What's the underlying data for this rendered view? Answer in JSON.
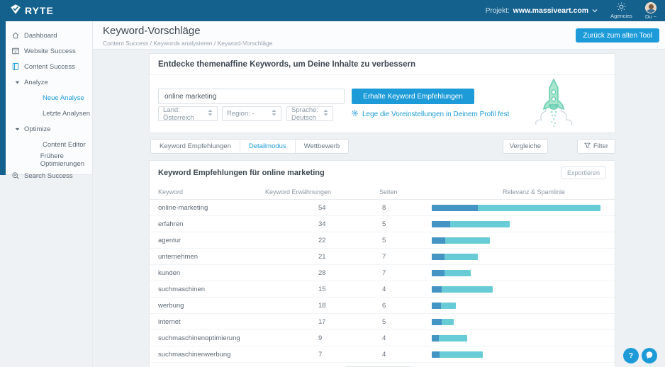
{
  "colors": {
    "topbar": "#15618e",
    "accent": "#1d9bd8",
    "bar_dark": "#4494c4",
    "bar_light": "#67ccd6"
  },
  "topbar": {
    "brand": "RYTE",
    "project_label": "Projekt:",
    "project_value": "www.massiveart.com",
    "agencies_label": "Agencies",
    "user_label": "Du ~"
  },
  "sidebar": {
    "items": [
      {
        "label": "Dashboard",
        "icon": "home-icon",
        "type": "main",
        "active": false
      },
      {
        "label": "Website Success",
        "icon": "website-icon",
        "type": "main",
        "active": false
      },
      {
        "label": "Content Success",
        "icon": "content-icon",
        "type": "main",
        "active": false,
        "icon_active": true
      },
      {
        "label": "Analyze",
        "icon": "caret-down-icon",
        "type": "group",
        "active": false
      },
      {
        "label": "Neue Analyse",
        "icon": "",
        "type": "sub",
        "active": true
      },
      {
        "label": "Letzte Analysen",
        "icon": "",
        "type": "sub",
        "active": false
      },
      {
        "label": "Optimize",
        "icon": "caret-down-icon",
        "type": "group",
        "active": false
      },
      {
        "label": "Content Editor",
        "icon": "",
        "type": "sub",
        "active": false
      },
      {
        "label": "Frühere Optimierungen",
        "icon": "",
        "type": "sub",
        "active": false
      },
      {
        "label": "Search Success",
        "icon": "search-icon",
        "type": "main",
        "active": false
      }
    ]
  },
  "header": {
    "title": "Keyword-Vorschläge",
    "breadcrumb": "Content Success / Keywords analysieren / Keyword-Vorschläge",
    "back_button": "Zurück zum alten Tool"
  },
  "search_panel": {
    "title": "Entdecke themenaffine Keywords, um Deine Inhalte zu verbessern",
    "keyword_input": "online marketing",
    "submit_button": "Erhalte Keyword Empfehlungen",
    "selects": [
      {
        "name": "country-select",
        "value": "Land: Österreich"
      },
      {
        "name": "region-select",
        "value": "Region: -"
      },
      {
        "name": "language-select",
        "value": "Sprache: Deutsch"
      }
    ],
    "settings_link": "Lege die Voreinstellungen in Deinem Profil fest"
  },
  "toolbar": {
    "tabs": [
      {
        "label": "Keyword Empfehlungen",
        "active": false
      },
      {
        "label": "Detailmodus",
        "active": true
      },
      {
        "label": "Wettbewerb",
        "active": false
      }
    ],
    "compare_button": "Vergleiche",
    "filter_button": "Filter"
  },
  "table": {
    "title": "Keyword Empfehlungen für online marketing",
    "export_button": "Exportieren",
    "columns": [
      "Keyword",
      "Keyword Erwähnungen",
      "Seiten",
      "Relevanz & Spamlinie"
    ],
    "rows": [
      {
        "keyword": "online-marketing",
        "mentions": 54,
        "pages": 8,
        "relevance_pct": 27,
        "total_pct": 99
      },
      {
        "keyword": "erfahren",
        "mentions": 34,
        "pages": 5,
        "relevance_pct": 11,
        "total_pct": 46
      },
      {
        "keyword": "agentur",
        "mentions": 22,
        "pages": 5,
        "relevance_pct": 8,
        "total_pct": 34
      },
      {
        "keyword": "unternehmen",
        "mentions": 21,
        "pages": 7,
        "relevance_pct": 7.5,
        "total_pct": 27
      },
      {
        "keyword": "kunden",
        "mentions": 28,
        "pages": 7,
        "relevance_pct": 7.5,
        "total_pct": 23
      },
      {
        "keyword": "suchmaschinen",
        "mentions": 15,
        "pages": 4,
        "relevance_pct": 6,
        "total_pct": 36
      },
      {
        "keyword": "werbung",
        "mentions": 18,
        "pages": 6,
        "relevance_pct": 5.5,
        "total_pct": 14
      },
      {
        "keyword": "internet",
        "mentions": 17,
        "pages": 5,
        "relevance_pct": 6,
        "total_pct": 13
      },
      {
        "keyword": "suchmaschinenoptimierung",
        "mentions": 9,
        "pages": 4,
        "relevance_pct": 4,
        "total_pct": 21
      },
      {
        "keyword": "suchmaschinenwerbung",
        "mentions": 7,
        "pages": 4,
        "relevance_pct": 4.5,
        "total_pct": 30
      }
    ]
  },
  "floating": {
    "help_label": "?"
  }
}
